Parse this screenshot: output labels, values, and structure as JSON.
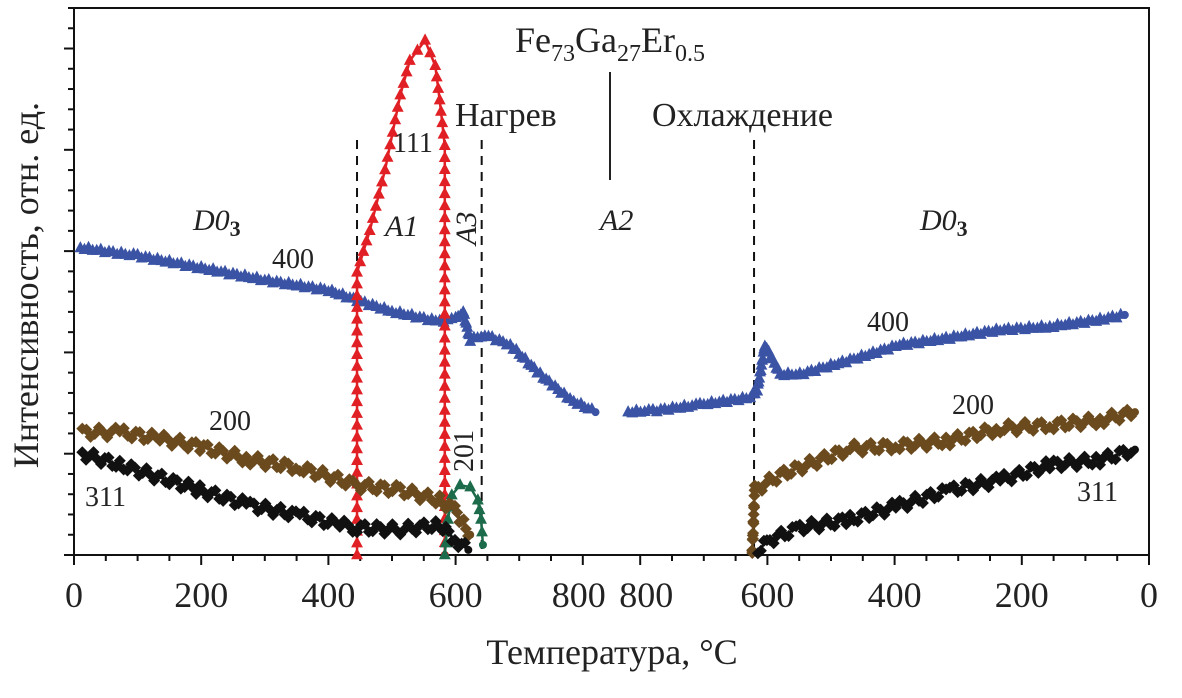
{
  "chart_data": {
    "type": "line",
    "title": "Fe73Ga27Er0.5",
    "title_parts": {
      "base1": "Fe",
      "sub1": "73",
      "base2": "Ga",
      "sub2": "27",
      "base3": "Er",
      "sub3": "0.5"
    },
    "xlabel": "Температура, °C",
    "ylabel": "Интенсивность, отн. ед.",
    "x_axis": {
      "heating": {
        "ticks": [
          0,
          200,
          400,
          600,
          800
        ],
        "range": [
          0,
          800
        ]
      },
      "cooling": {
        "ticks": [
          800,
          600,
          400,
          200,
          0
        ],
        "range": [
          800,
          0
        ]
      },
      "tick_labels": [
        "0",
        "200",
        "400",
        "600",
        "800",
        "800",
        "600",
        "400",
        "200",
        "0"
      ]
    },
    "y_axis": {
      "range": [
        0,
        5.4
      ],
      "tick_labels_shown": false
    },
    "grid": false,
    "regions": {
      "heating_label": "Нагрев",
      "cooling_label": "Охлаждение",
      "phases": [
        {
          "label": "D0",
          "sub": "3",
          "segment": "heating"
        },
        {
          "label": "A1",
          "segment": "heating"
        },
        {
          "label": "A3",
          "segment": "heating"
        },
        {
          "label": "A2",
          "segment": "heating"
        },
        {
          "label": "D0",
          "sub": "3",
          "segment": "cooling"
        }
      ],
      "boundaries": [
        {
          "segment": "heating",
          "x": 445
        },
        {
          "segment": "heating",
          "x": 583
        },
        {
          "segment": "heating",
          "x": 641
        },
        {
          "segment": "cooling",
          "x": 621
        }
      ]
    },
    "series": [
      {
        "label": "400",
        "segment": "heating",
        "color": "#3a53a4",
        "marker": "triangle",
        "x": [
          10,
          100,
          200,
          300,
          400,
          445,
          500,
          575,
          600,
          612,
          623,
          646,
          686,
          733,
          780,
          820
        ],
        "y": [
          3.03,
          2.95,
          2.83,
          2.71,
          2.61,
          2.51,
          2.4,
          2.3,
          2.33,
          2.4,
          2.12,
          2.17,
          2.07,
          1.78,
          1.53,
          1.41
        ]
      },
      {
        "label": "400",
        "segment": "cooling",
        "color": "#3a53a4",
        "marker": "triangle",
        "x": [
          819,
          780,
          706,
          627,
          616,
          604,
          580,
          549,
          470,
          392,
          313,
          234,
          156,
          77,
          38
        ],
        "y": [
          1.41,
          1.42,
          1.48,
          1.55,
          1.63,
          2.07,
          1.78,
          1.78,
          1.92,
          2.07,
          2.14,
          2.22,
          2.25,
          2.32,
          2.37
        ]
      },
      {
        "label": "111",
        "segment": "heating",
        "color": "#e02025",
        "marker": "triangle",
        "x": [
          445,
          445,
          465,
          489,
          513,
          528,
          552,
          568,
          575,
          583,
          583
        ],
        "y": [
          0,
          2.79,
          3.2,
          3.8,
          4.54,
          4.88,
          5.08,
          4.83,
          4.49,
          4.04,
          0
        ]
      },
      {
        "label": "201",
        "segment": "heating",
        "color": "#1c6b4a",
        "marker": "triangle",
        "x": [
          583,
          588,
          594,
          607,
          623,
          635,
          640,
          643
        ],
        "y": [
          0,
          0.35,
          0.59,
          0.69,
          0.67,
          0.54,
          0.35,
          0.1
        ]
      },
      {
        "label": "200",
        "segment": "heating",
        "color": "#6b4a1e",
        "marker": "diamond",
        "x": [
          13,
          72,
          135,
          198,
          277,
          355,
          445,
          513,
          575,
          599,
          623
        ],
        "y": [
          1.21,
          1.21,
          1.15,
          1.07,
          0.94,
          0.86,
          0.69,
          0.64,
          0.54,
          0.44,
          0.2
        ]
      },
      {
        "label": "200",
        "segment": "cooling",
        "color": "#6b4a1e",
        "marker": "diamond",
        "x": [
          624,
          620,
          580,
          470,
          392,
          313,
          234,
          156,
          77,
          22
        ],
        "y": [
          0,
          0.64,
          0.79,
          1.05,
          1.08,
          1.13,
          1.25,
          1.28,
          1.33,
          1.41
        ]
      },
      {
        "label": "311",
        "segment": "heating",
        "color": "#111111",
        "marker": "diamond",
        "x": [
          13,
          72,
          198,
          277,
          355,
          418,
          445,
          513,
          575,
          599,
          620
        ],
        "y": [
          1.0,
          0.89,
          0.64,
          0.49,
          0.39,
          0.3,
          0.27,
          0.25,
          0.3,
          0.15,
          0.05
        ]
      },
      {
        "label": "311",
        "segment": "cooling",
        "color": "#111111",
        "marker": "diamond",
        "x": [
          615,
          596,
          549,
          470,
          392,
          313,
          234,
          156,
          77,
          22
        ],
        "y": [
          0.05,
          0.15,
          0.27,
          0.35,
          0.49,
          0.64,
          0.74,
          0.89,
          0.94,
          1.04
        ]
      }
    ]
  }
}
